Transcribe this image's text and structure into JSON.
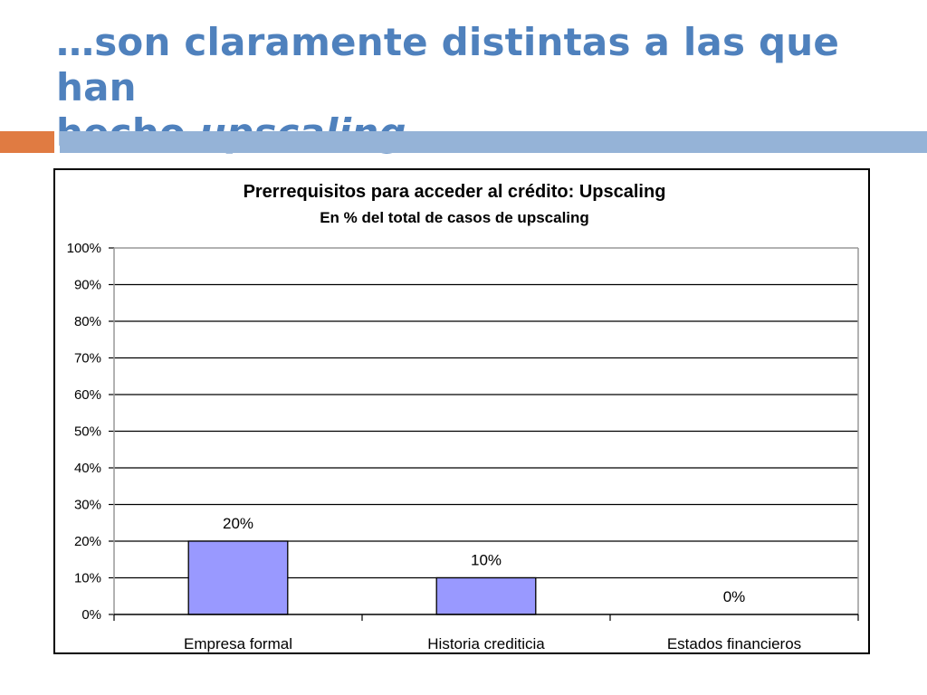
{
  "slide": {
    "title_line1": "…son claramente distintas a las que han",
    "title_line2_plain": "hecho ",
    "title_line2_italic": "upscaling"
  },
  "colors": {
    "title": "#4f81bd",
    "accent_orange": "#e07b42",
    "accent_blue": "#95b3d7",
    "bar_fill": "#9999ff",
    "bar_stroke": "#000000"
  },
  "chart_data": {
    "type": "bar",
    "title": "Prerrequisitos para acceder al crédito: Upscaling",
    "subtitle": "En % del total de casos de upscaling",
    "categories": [
      "Empresa formal",
      "Historia crediticia",
      "Estados financieros"
    ],
    "values": [
      20,
      10,
      0
    ],
    "data_labels": [
      "20%",
      "10%",
      "0%"
    ],
    "ylim": [
      0,
      100
    ],
    "ytick_labels": [
      "0%",
      "10%",
      "20%",
      "30%",
      "40%",
      "50%",
      "60%",
      "70%",
      "80%",
      "90%",
      "100%"
    ],
    "xlabel": "",
    "ylabel": "",
    "grid": true,
    "legend": false
  }
}
